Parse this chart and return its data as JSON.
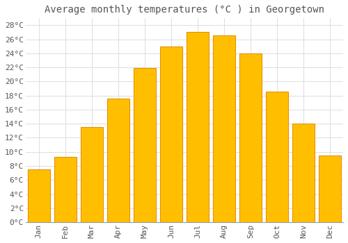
{
  "title": "Average monthly temperatures (°C ) in Georgetown",
  "months": [
    "Jan",
    "Feb",
    "Mar",
    "Apr",
    "May",
    "Jun",
    "Jul",
    "Aug",
    "Sep",
    "Oct",
    "Nov",
    "Dec"
  ],
  "values": [
    7.5,
    9.3,
    13.5,
    17.6,
    21.9,
    25.0,
    27.1,
    26.6,
    24.0,
    18.6,
    14.0,
    9.5
  ],
  "bar_color": "#FFBF00",
  "bar_edge_color": "#E89000",
  "background_color": "#FFFFFF",
  "grid_color": "#DDDDDD",
  "text_color": "#555555",
  "ylim": [
    0,
    29
  ],
  "ytick_step": 2,
  "title_fontsize": 10,
  "tick_fontsize": 8,
  "font_family": "monospace"
}
